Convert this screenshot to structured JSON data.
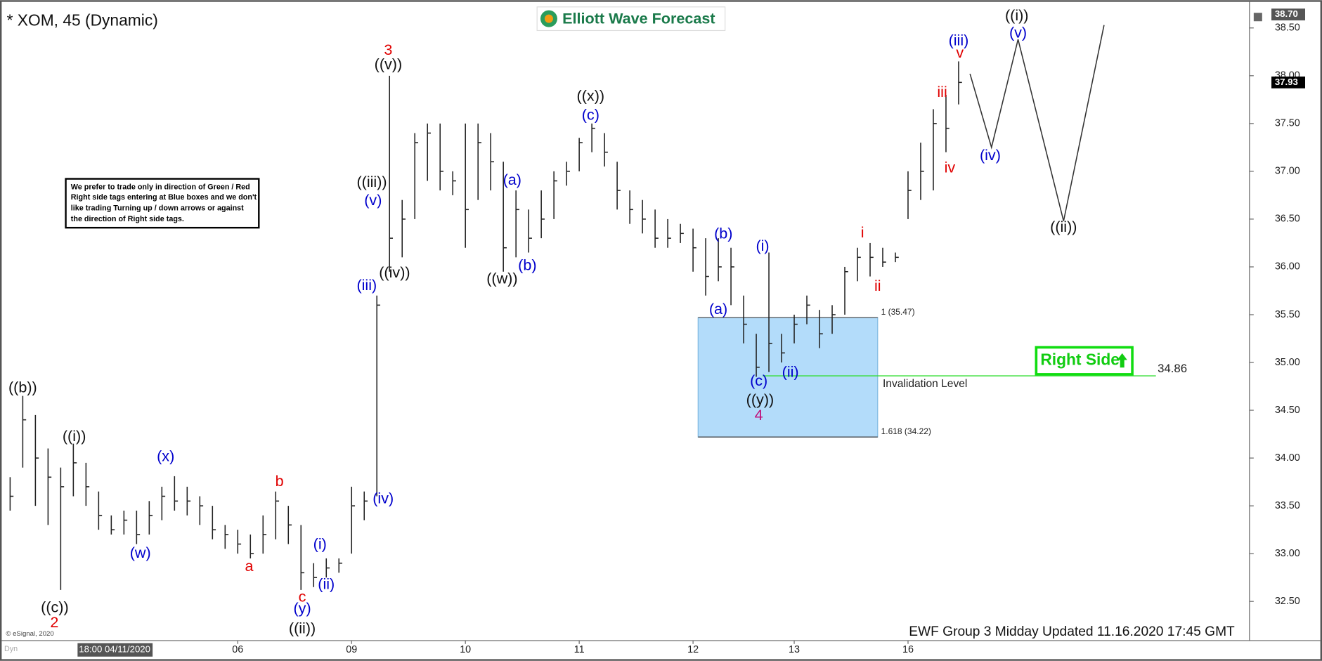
{
  "header": {
    "title": "* XOM, 45 (Dynamic)",
    "logo": "Elliott Wave Forecast"
  },
  "note": [
    "We prefer to trade only in direction of Green / Red",
    "Right side tags entering at Blue boxes and we don't",
    "like trading Turning up / down arrows or against",
    "the direction of Right side tags."
  ],
  "right_side_tag": "Right Side",
  "footer": "EWF Group 3 Midday Updated 11.16.2020 17:45 GMT",
  "copyright": "© eSignal, 2020",
  "status": "Dyn",
  "chart_data": {
    "type": "ohlc",
    "crosshair_label": "18:00 04/11/2020",
    "categories": [
      null,
      null,
      null,
      null,
      null,
      null,
      null,
      null,
      null,
      null,
      null,
      null,
      null,
      null,
      null,
      null,
      null,
      null,
      "06",
      null,
      null,
      null,
      null,
      null,
      null,
      null,
      null,
      "09",
      null,
      null,
      null,
      null,
      null,
      null,
      null,
      null,
      "10",
      null,
      null,
      null,
      null,
      null,
      null,
      null,
      null,
      "11",
      null,
      null,
      null,
      null,
      null,
      null,
      null,
      null,
      "12",
      null,
      null,
      null,
      null,
      null,
      null,
      null,
      "13",
      null,
      null,
      null,
      null,
      null,
      null,
      null,
      null,
      "16",
      null,
      null,
      null,
      null
    ],
    "high": [
      33.8,
      34.65,
      34.45,
      34.1,
      33.9,
      34.15,
      33.95,
      33.65,
      33.4,
      33.45,
      33.45,
      33.55,
      33.7,
      33.81,
      33.7,
      33.6,
      33.5,
      33.3,
      33.25,
      33.2,
      33.4,
      33.65,
      33.5,
      33.3,
      32.9,
      32.95,
      32.95,
      33.7,
      33.65,
      35.7,
      38.0,
      36.7,
      37.4,
      37.5,
      37.5,
      37.0,
      37.5,
      37.5,
      37.4,
      37.1,
      36.8,
      36.6,
      36.8,
      37.0,
      37.1,
      37.35,
      37.5,
      37.4,
      37.1,
      36.8,
      36.7,
      36.6,
      36.5,
      36.45,
      36.4,
      36.3,
      36.3,
      36.2,
      35.7,
      35.3,
      36.15,
      35.3,
      35.5,
      35.7,
      35.55,
      35.6,
      36.0,
      36.2,
      36.25,
      36.2,
      36.15,
      37.0,
      37.3,
      37.65,
      37.8,
      38.15
    ],
    "low": [
      33.45,
      33.9,
      33.5,
      33.3,
      32.62,
      33.6,
      33.5,
      33.25,
      33.2,
      33.2,
      33.1,
      33.2,
      33.35,
      33.45,
      33.4,
      33.3,
      33.15,
      33.05,
      33.0,
      32.95,
      33.0,
      33.15,
      33.1,
      32.62,
      32.65,
      32.75,
      32.8,
      33.0,
      33.35,
      33.6,
      35.95,
      36.1,
      36.5,
      36.9,
      36.8,
      36.75,
      36.2,
      36.7,
      36.8,
      35.95,
      36.1,
      36.15,
      36.3,
      36.5,
      36.85,
      37.0,
      37.2,
      37.05,
      36.6,
      36.45,
      36.35,
      36.2,
      36.2,
      36.25,
      35.95,
      35.7,
      35.85,
      35.6,
      35.2,
      34.85,
      34.9,
      35.0,
      35.2,
      35.4,
      35.15,
      35.3,
      35.5,
      35.85,
      35.9,
      36.0,
      36.05,
      36.5,
      36.7,
      36.8,
      37.2,
      37.7
    ],
    "close": [
      33.6,
      34.4,
      34.0,
      33.8,
      33.7,
      33.95,
      33.7,
      33.4,
      33.25,
      33.35,
      33.2,
      33.4,
      33.6,
      33.55,
      33.55,
      33.5,
      33.25,
      33.2,
      33.1,
      33.0,
      33.2,
      33.55,
      33.3,
      32.8,
      32.75,
      32.85,
      32.9,
      33.5,
      33.55,
      35.6,
      36.3,
      36.5,
      37.3,
      37.4,
      37.0,
      36.9,
      36.6,
      37.3,
      37.1,
      36.2,
      36.6,
      36.3,
      36.5,
      36.9,
      37.0,
      37.3,
      37.45,
      37.2,
      36.8,
      36.6,
      36.5,
      36.3,
      36.3,
      36.35,
      36.2,
      35.9,
      36.0,
      36.0,
      35.4,
      34.95,
      35.2,
      35.1,
      35.4,
      35.6,
      35.3,
      35.5,
      35.95,
      36.1,
      36.1,
      36.05,
      36.1,
      36.8,
      37.0,
      37.5,
      37.45,
      37.93
    ],
    "bar_color": "#222222",
    "projection": {
      "x": [
        75.9,
        77.6,
        79.7,
        83.3,
        86.5
      ],
      "values": [
        38.02,
        37.25,
        38.38,
        36.48,
        38.53
      ],
      "color": "#333333"
    },
    "zone": {
      "from": 54.4,
      "to": 68.6,
      "top": 35.47,
      "bottom": 34.22,
      "top_label": "1 (35.47)",
      "bottom_label": "1.618 (34.22)",
      "color": "#b3dcfa"
    },
    "invalidation": {
      "value": 34.86,
      "value_label": "34.86",
      "text": "Invalidation Level",
      "from": 59.5,
      "to": 90.6,
      "color": "#33dd33"
    },
    "price_markers": [
      {
        "value": 38.7,
        "label": "38.70",
        "color": "#555555"
      },
      {
        "value": 37.93,
        "label": "37.93",
        "color": "#000000"
      }
    ],
    "ylim": [
      32.09,
      38.72
    ],
    "yticks": [
      {
        "value": 32.5,
        "label": "32.50"
      },
      {
        "value": 33,
        "label": "33.00"
      },
      {
        "value": 33.5,
        "label": "33.50"
      },
      {
        "value": 34,
        "label": "34.00"
      },
      {
        "value": 34.5,
        "label": "34.50"
      },
      {
        "value": 35,
        "label": "35.00"
      },
      {
        "value": 35.5,
        "label": "35.50"
      },
      {
        "value": 36,
        "label": "36.00"
      },
      {
        "value": 36.5,
        "label": "36.50"
      },
      {
        "value": 37,
        "label": "37.00"
      },
      {
        "value": 37.5,
        "label": "37.50"
      },
      {
        "value": 38,
        "label": "38.00"
      },
      {
        "value": 38.5,
        "label": "38.50"
      }
    ],
    "annotations": [
      {
        "text": "((b))",
        "at": 1,
        "price": 34.73,
        "color": "#111111"
      },
      {
        "text": "((c))",
        "at": 3.53,
        "price": 32.43,
        "color": "#111111"
      },
      {
        "text": "2",
        "at": 3.5,
        "price": 32.27,
        "color": "#e00000"
      },
      {
        "text": "((i))",
        "at": 5.07,
        "price": 34.22,
        "color": "#111111"
      },
      {
        "text": "(w)",
        "at": 10.3,
        "price": 33.0,
        "color": "#0000cc"
      },
      {
        "text": "(x)",
        "at": 12.3,
        "price": 34.01,
        "color": "#0000cc"
      },
      {
        "text": "a",
        "at": 18.9,
        "price": 32.86,
        "color": "#e00000"
      },
      {
        "text": "b",
        "at": 21.3,
        "price": 33.75,
        "color": "#e00000"
      },
      {
        "text": "c",
        "at": 23.1,
        "price": 32.54,
        "color": "#e00000"
      },
      {
        "text": "(y)",
        "at": 23.1,
        "price": 32.42,
        "color": "#0000cc"
      },
      {
        "text": "((ii))",
        "at": 23.1,
        "price": 32.21,
        "color": "#111111"
      },
      {
        "text": "(i)",
        "at": 24.5,
        "price": 33.09,
        "color": "#0000cc"
      },
      {
        "text": "(ii)",
        "at": 25,
        "price": 32.67,
        "color": "#0000cc"
      },
      {
        "text": "(iv)",
        "at": 29.5,
        "price": 33.57,
        "color": "#0000cc"
      },
      {
        "text": "(iii)",
        "at": 28.2,
        "price": 35.8,
        "color": "#0000cc"
      },
      {
        "text": "(v)",
        "at": 28.7,
        "price": 36.69,
        "color": "#0000cc"
      },
      {
        "text": "((iii))",
        "at": 28.6,
        "price": 36.88,
        "color": "#111111"
      },
      {
        "text": "((iv))",
        "at": 30.4,
        "price": 35.93,
        "color": "#111111"
      },
      {
        "text": "((v))",
        "at": 29.9,
        "price": 38.11,
        "color": "#111111"
      },
      {
        "text": "3",
        "at": 29.9,
        "price": 38.26,
        "color": "#e00000"
      },
      {
        "text": "((w))",
        "at": 38.9,
        "price": 35.87,
        "color": "#111111"
      },
      {
        "text": "(a)",
        "at": 39.7,
        "price": 36.9,
        "color": "#0000cc"
      },
      {
        "text": "(b)",
        "at": 40.9,
        "price": 36.01,
        "color": "#0000cc"
      },
      {
        "text": "((x))",
        "at": 45.9,
        "price": 37.78,
        "color": "#111111"
      },
      {
        "text": "(c)",
        "at": 45.9,
        "price": 37.58,
        "color": "#0000cc"
      },
      {
        "text": "(a)",
        "at": 56,
        "price": 35.55,
        "color": "#0000cc"
      },
      {
        "text": "(b)",
        "at": 56.4,
        "price": 36.34,
        "color": "#0000cc"
      },
      {
        "text": "(i)",
        "at": 59.5,
        "price": 36.21,
        "color": "#0000cc"
      },
      {
        "text": "(c)",
        "at": 59.2,
        "price": 34.8,
        "color": "#0000cc"
      },
      {
        "text": "(ii)",
        "at": 61.7,
        "price": 34.89,
        "color": "#0000cc"
      },
      {
        "text": "((y))",
        "at": 59.3,
        "price": 34.6,
        "color": "#111111"
      },
      {
        "text": "4",
        "at": 59.2,
        "price": 34.44,
        "color": "#c0107a"
      },
      {
        "text": "i",
        "at": 67.4,
        "price": 36.35,
        "color": "#e00000"
      },
      {
        "text": "ii",
        "at": 68.6,
        "price": 35.79,
        "color": "#e00000"
      },
      {
        "text": "iii",
        "at": 73.7,
        "price": 37.82,
        "color": "#e00000"
      },
      {
        "text": "iv",
        "at": 74.3,
        "price": 37.03,
        "color": "#e00000"
      },
      {
        "text": "v",
        "at": 75.1,
        "price": 38.23,
        "color": "#e00000"
      },
      {
        "text": "(iii)",
        "at": 75,
        "price": 38.36,
        "color": "#0000cc"
      },
      {
        "text": "(iv)",
        "at": 77.5,
        "price": 37.16,
        "color": "#0000cc"
      },
      {
        "text": "(v)",
        "at": 79.7,
        "price": 38.44,
        "color": "#0000cc"
      },
      {
        "text": "((i))",
        "at": 79.6,
        "price": 38.62,
        "color": "#111111"
      },
      {
        "text": "((ii))",
        "at": 83.3,
        "price": 36.41,
        "color": "#111111"
      }
    ]
  }
}
